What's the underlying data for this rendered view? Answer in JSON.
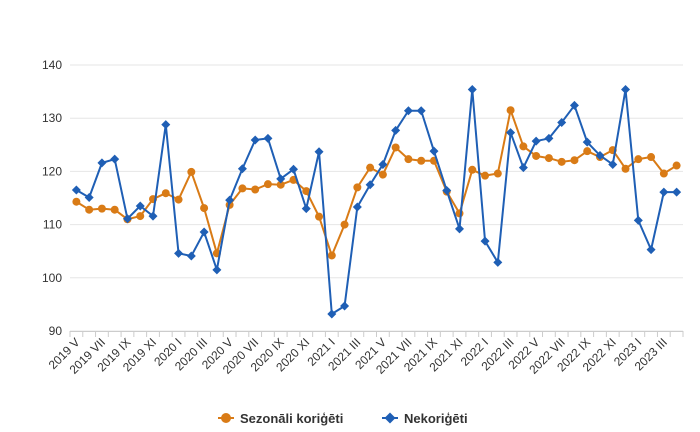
{
  "chart_data": {
    "type": "line",
    "title": "",
    "xlabel": "",
    "ylabel": "",
    "ylim": [
      90,
      140
    ],
    "yticks": [
      90,
      100,
      110,
      120,
      130,
      140
    ],
    "grid": "horizontal",
    "legend_position": "bottom-center",
    "x": [
      "2019 V",
      "2019 VI",
      "2019 VII",
      "2019 VIII",
      "2019 IX",
      "2019 X",
      "2019 XI",
      "2019 XII",
      "2020 I",
      "2020 II",
      "2020 III",
      "2020 IV",
      "2020 V",
      "2020 VI",
      "2020 VII",
      "2020 VIII",
      "2020 IX",
      "2020 X",
      "2020 XI",
      "2020 XII",
      "2021 I",
      "2021 II",
      "2021 III",
      "2021 IV",
      "2021 V",
      "2021 VI",
      "2021 VII",
      "2021 VIII",
      "2021 IX",
      "2021 X",
      "2021 XI",
      "2021 XII",
      "2022 I",
      "2022 II",
      "2022 III",
      "2022 IV",
      "2022 V",
      "2022 VI",
      "2022 VII",
      "2022 VIII",
      "2022 IX",
      "2022 X",
      "2022 XI",
      "2022 XII",
      "2023 I",
      "2023 II",
      "2023 III",
      "2023 IV"
    ],
    "x_tick_labels": [
      "2019 V",
      "2019 VII",
      "2019 IX",
      "2019 XI",
      "2020 I",
      "2020 III",
      "2020 V",
      "2020 VII",
      "2020 IX",
      "2020 XI",
      "2021 I",
      "2021 III",
      "2021 V",
      "2021 VII",
      "2021 IX",
      "2021 XI",
      "2022 I",
      "2022 III",
      "2022 V",
      "2022 VII",
      "2022 IX",
      "2022 XI",
      "2023 I",
      "2023 III"
    ],
    "series": [
      {
        "name": "Sezonāli koriģēti",
        "color": "#d97b16",
        "marker": "circle",
        "values": [
          114.3,
          112.8,
          113.0,
          112.8,
          111.0,
          111.6,
          114.8,
          115.9,
          114.7,
          119.9,
          113.1,
          104.6,
          113.7,
          116.8,
          116.6,
          117.6,
          117.5,
          118.4,
          116.3,
          111.5,
          104.2,
          110.0,
          117.0,
          120.7,
          119.4,
          124.5,
          122.3,
          122.0,
          122.0,
          116.2,
          112.1,
          120.3,
          119.2,
          119.6,
          131.5,
          124.7,
          122.9,
          122.5,
          121.8,
          122.1,
          123.8,
          122.7,
          124.0,
          120.5,
          122.3,
          122.7,
          119.6,
          121.1
        ]
      },
      {
        "name": "Nekoriģēti",
        "color": "#1f5fb5",
        "marker": "diamond",
        "values": [
          116.5,
          115.1,
          121.6,
          122.3,
          111.1,
          113.5,
          111.6,
          128.8,
          104.6,
          104.1,
          108.6,
          101.5,
          114.6,
          120.5,
          125.9,
          126.2,
          118.6,
          120.4,
          113.0,
          123.7,
          93.2,
          94.7,
          113.3,
          117.5,
          121.3,
          127.7,
          131.4,
          131.4,
          123.8,
          116.4,
          109.2,
          135.4,
          106.9,
          102.9,
          127.3,
          120.7,
          125.7,
          126.2,
          129.2,
          132.4,
          125.5,
          123.0,
          121.3,
          135.4,
          110.8,
          105.3,
          116.1,
          116.1
        ]
      }
    ]
  }
}
